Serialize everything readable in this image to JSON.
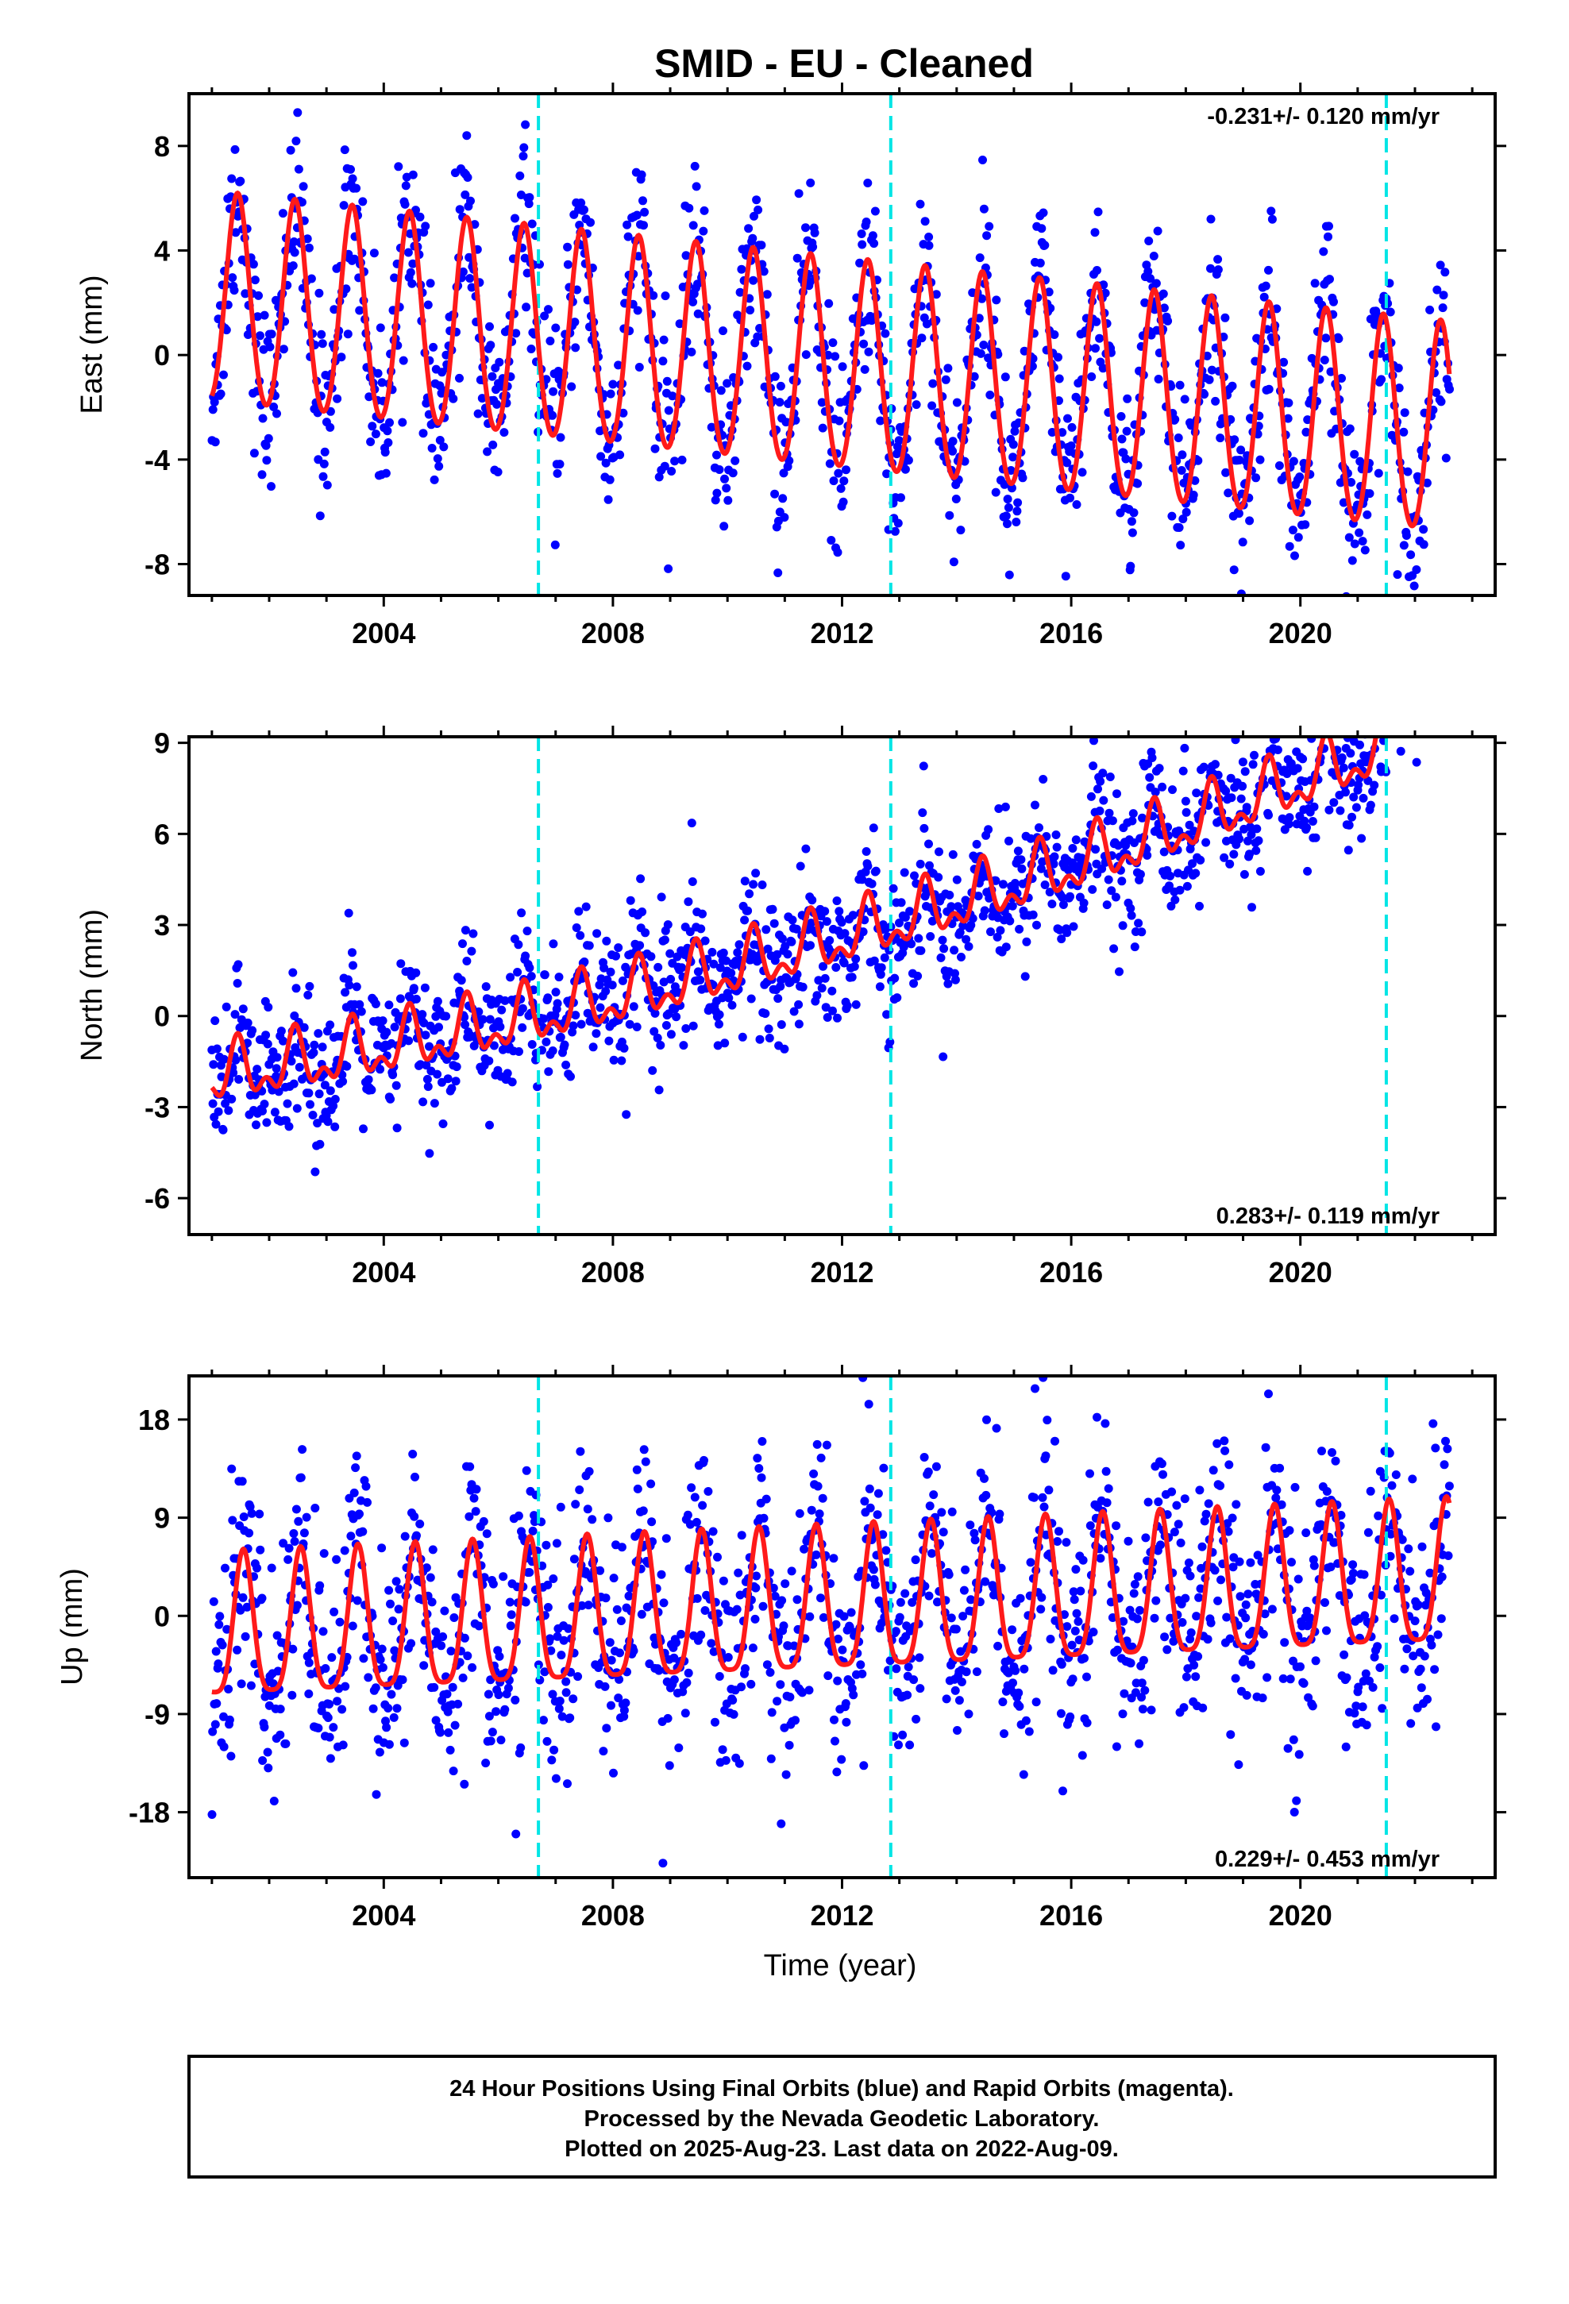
{
  "title": "SMID  - EU - Cleaned",
  "xlabel": "Time (year)",
  "footer": {
    "line1": "24 Hour Positions Using Final Orbits (blue) and Rapid Orbits (magenta).",
    "line2": "Processed by the Nevada Geodetic Laboratory.",
    "line3": "Plotted on 2025-Aug-23. Last data on 2022-Aug-09."
  },
  "colors": {
    "points": "#0000ff",
    "model": "#ff1a1a",
    "breaks": "#00e5e5",
    "frame": "#000000"
  },
  "chart_data": [
    {
      "type": "scatter",
      "component": "East",
      "ylabel": "East (mm)",
      "ylim": [
        -9.2,
        10
      ],
      "yticks": [
        -8,
        -4,
        0,
        4,
        8
      ],
      "xlim": [
        2000.6,
        2023.4
      ],
      "xticks": [
        2004,
        2008,
        2012,
        2016,
        2020
      ],
      "x_start": 2001.0,
      "x_end": 2022.6,
      "rate_text": "-0.231+/- 0.120 mm/yr",
      "rate_position": "top-right",
      "equipment_changes": [
        2006.7,
        2012.85,
        2021.5
      ],
      "model": {
        "offset": 2.0,
        "rate": -0.231,
        "annual_amplitude": 4.0,
        "annual_peak": 0.45,
        "semiannual_amplitude": 0.3,
        "scatter_sd": 1.6,
        "points_per_year": 70
      },
      "series": [
        {
          "label": "daily positions",
          "style": "points"
        },
        {
          "label": "model fit",
          "style": "line"
        }
      ]
    },
    {
      "type": "scatter",
      "component": "North",
      "ylabel": "North (mm)",
      "ylim": [
        -7.2,
        9.2
      ],
      "yticks": [
        -6,
        -3,
        0,
        3,
        6,
        9
      ],
      "xlim": [
        2000.6,
        2023.4
      ],
      "xticks": [
        2004,
        2008,
        2012,
        2016,
        2020
      ],
      "x_start": 2001.0,
      "x_end": 2022.6,
      "rate_text": "0.283+/- 0.119 mm/yr",
      "rate_position": "bottom-right",
      "equipment_changes": [
        2006.7,
        2012.85,
        2021.5
      ],
      "model": {
        "offset": -2.0,
        "rate": 0.283,
        "annual_amplitude": 0.8,
        "annual_peak": 0.45,
        "semiannual_amplitude": 0.5,
        "scatter_sd": 1.1,
        "points_per_year": 70,
        "quadratic": 0.012,
        "step_at": 2021.5,
        "step": 2.0
      },
      "series": [
        {
          "label": "daily positions",
          "style": "points"
        },
        {
          "label": "model fit",
          "style": "line"
        }
      ]
    },
    {
      "type": "scatter",
      "component": "Up",
      "ylabel": "Up (mm)",
      "ylim": [
        -24,
        22
      ],
      "yticks": [
        -18,
        -9,
        0,
        9,
        18
      ],
      "xlim": [
        2000.6,
        2023.4
      ],
      "xticks": [
        2004,
        2008,
        2012,
        2016,
        2020
      ],
      "x_start": 2001.0,
      "x_end": 2022.6,
      "rate_text": "0.229+/- 0.453 mm/yr",
      "rate_position": "bottom-right",
      "equipment_changes": [
        2006.7,
        2012.85,
        2021.5
      ],
      "model": {
        "offset": -2.0,
        "rate": 0.229,
        "annual_amplitude": 6.5,
        "annual_peak": 0.55,
        "semiannual_amplitude": 1.5,
        "scatter_sd": 5.0,
        "points_per_year": 70
      },
      "series": [
        {
          "label": "daily positions",
          "style": "points"
        },
        {
          "label": "model fit",
          "style": "line"
        }
      ]
    }
  ]
}
